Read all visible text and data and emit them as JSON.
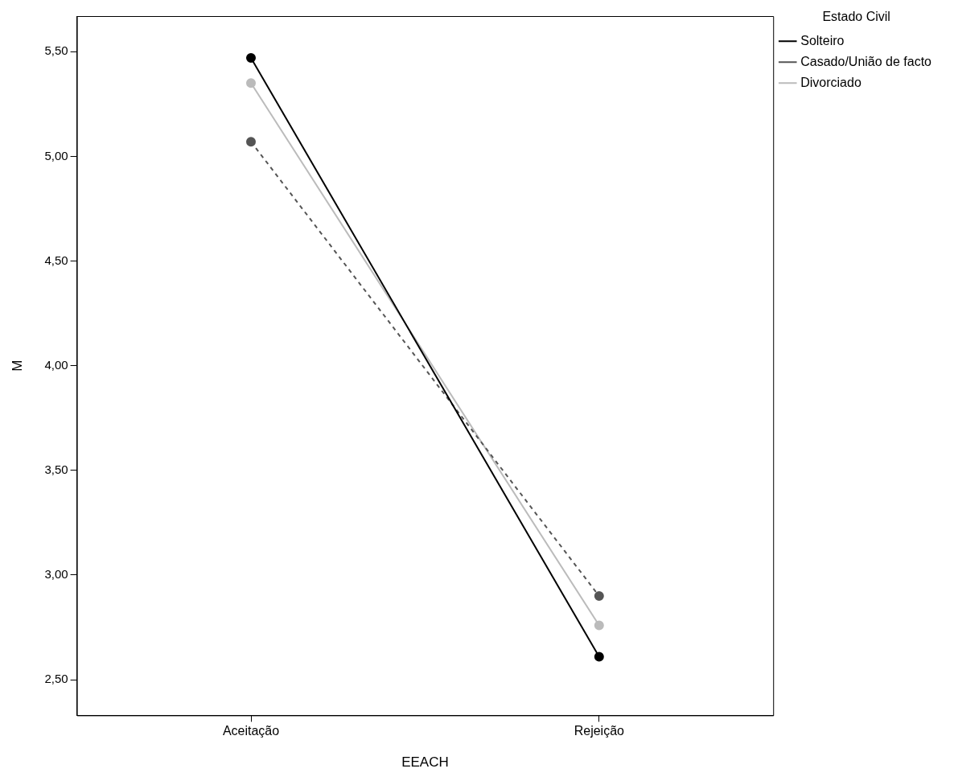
{
  "chart_data": {
    "type": "line",
    "xlabel": "EEACH",
    "ylabel": "M",
    "legend_title": "Estado Civil",
    "categories": [
      "Aceitação",
      "Rejeição"
    ],
    "series": [
      {
        "name": "Solteiro",
        "color": "#000000",
        "values": [
          5.47,
          2.61
        ],
        "line_style": "solid"
      },
      {
        "name": "Casado/União de facto",
        "color": "#555555",
        "values": [
          5.07,
          2.9
        ],
        "line_style": "dashed"
      },
      {
        "name": "Divorciado",
        "color": "#bbbbbb",
        "values": [
          5.35,
          2.76
        ],
        "line_style": "solid"
      }
    ],
    "ylim": [
      2.33,
      5.67
    ],
    "yticks": [
      {
        "value": 2.5,
        "label": "2,50"
      },
      {
        "value": 3,
        "label": "3,00"
      },
      {
        "value": 3.5,
        "label": "3,50"
      },
      {
        "value": 4,
        "label": "4,00"
      },
      {
        "value": 4.5,
        "label": "4,50"
      },
      {
        "value": 5,
        "label": "5,00"
      },
      {
        "value": 5.5,
        "label": "5,50"
      }
    ],
    "marker": "circle",
    "grid": false,
    "legend": "top right"
  }
}
